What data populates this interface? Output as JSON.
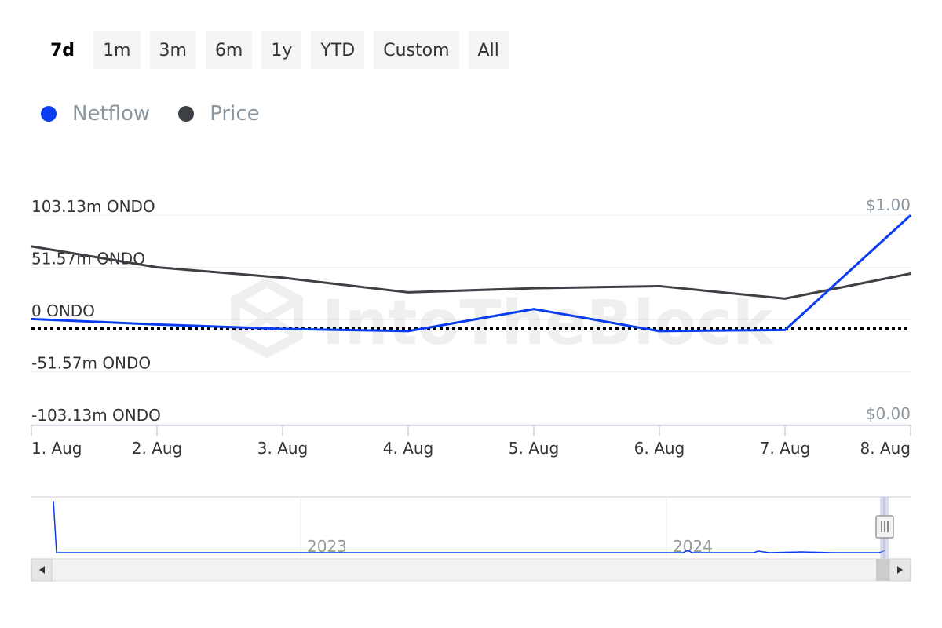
{
  "range_buttons": [
    {
      "label": "7d",
      "active": true
    },
    {
      "label": "1m",
      "active": false
    },
    {
      "label": "3m",
      "active": false
    },
    {
      "label": "6m",
      "active": false
    },
    {
      "label": "1y",
      "active": false
    },
    {
      "label": "YTD",
      "active": false
    },
    {
      "label": "Custom",
      "active": false
    },
    {
      "label": "All",
      "active": false
    }
  ],
  "watermark": "IntoTheBlock",
  "colors": {
    "netflow": "#0a3cf0",
    "price": "#3d4146",
    "zero_line": "#000000"
  },
  "chart_data": {
    "type": "line",
    "categories": [
      "1. Aug",
      "2. Aug",
      "3. Aug",
      "4. Aug",
      "5. Aug",
      "6. Aug",
      "7. Aug",
      "8. Aug"
    ],
    "legend": {
      "placement": "top-left",
      "entries": [
        "Netflow",
        "Price"
      ]
    },
    "series": [
      {
        "name": "Netflow",
        "axis": "left",
        "values": [
          9,
          4,
          0,
          -2,
          18,
          -2,
          -1,
          103
        ]
      },
      {
        "name": "Price",
        "axis": "right",
        "values": [
          0.85,
          0.75,
          0.7,
          0.63,
          0.65,
          0.66,
          0.6,
          0.72
        ]
      }
    ],
    "y_left": {
      "ticks": [
        "103.13m ONDO",
        "51.57m ONDO",
        "0 ONDO",
        "-51.57m ONDO",
        "-103.13m ONDO"
      ],
      "range": [
        -103.13,
        103.13
      ],
      "unit": "m ONDO"
    },
    "y_right": {
      "ticks": [
        "$1.00",
        "$0.00"
      ],
      "range": [
        0,
        1
      ]
    },
    "zero_line": "dotted",
    "navigator": {
      "labels": [
        "2023",
        "2024"
      ]
    }
  }
}
